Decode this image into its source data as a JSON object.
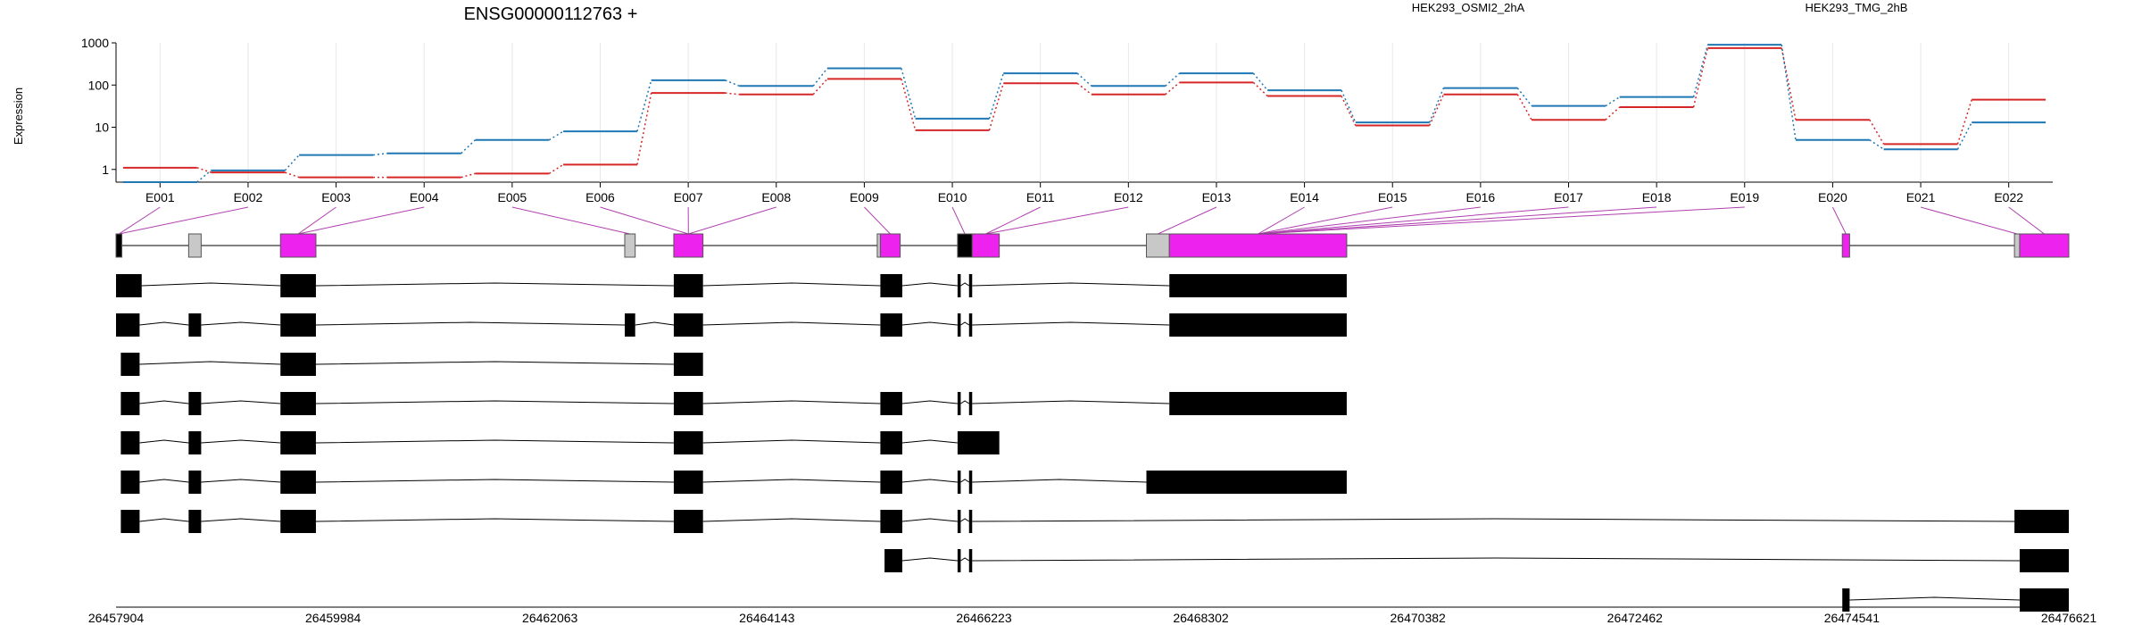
{
  "chart_data": {
    "type": "line",
    "title": "ENSG00000112763 +",
    "ylabel": "Expression",
    "y_scale": "log",
    "ylim": [
      0.5,
      1000
    ],
    "y_ticks": [
      "1000",
      "100",
      "10",
      "1"
    ],
    "grid": true,
    "legend_position": "top-right",
    "colors": {
      "OSMI2": "#d62728",
      "TMG": "#1f77b4",
      "exon_highlight": "#ee22ee",
      "exon_other": "#c8c8c8",
      "transcript": "#000000"
    },
    "categories": [
      "E001",
      "E002",
      "E003",
      "E004",
      "E005",
      "E006",
      "E007",
      "E008",
      "E009",
      "E010",
      "E011",
      "E012",
      "E013",
      "E014",
      "E015",
      "E016",
      "E017",
      "E018",
      "E019",
      "E020",
      "E021",
      "E022"
    ],
    "series": [
      {
        "name": "HEK293_OSMI2_2hA",
        "color": "#d62728",
        "values": [
          1.1,
          0.85,
          0.65,
          0.65,
          0.8,
          1.3,
          65,
          60,
          140,
          8.5,
          110,
          60,
          115,
          55,
          11,
          60,
          15,
          30,
          750,
          15,
          4,
          45
        ]
      },
      {
        "name": "HEK293_TMG_2hB",
        "color": "#1f77b4",
        "values": [
          0.5,
          0.95,
          2.2,
          2.4,
          5,
          8,
          130,
          95,
          250,
          16,
          190,
          95,
          190,
          75,
          13,
          85,
          32,
          52,
          900,
          5,
          3,
          13
        ]
      }
    ],
    "genomic_ticks": [
      "26457904",
      "26459984",
      "26462063",
      "26464143",
      "26466223",
      "26468302",
      "26470382",
      "26472462",
      "26474541",
      "26476621"
    ],
    "genomic_range": [
      26457904,
      26476621
    ],
    "exons": [
      {
        "start": 26457904,
        "end": 26457960,
        "type": "mixed"
      },
      {
        "start": 26458600,
        "end": 26458720,
        "type": "other"
      },
      {
        "start": 26459480,
        "end": 26459820,
        "type": "highlight"
      },
      {
        "start": 26462780,
        "end": 26462880,
        "type": "other"
      },
      {
        "start": 26463250,
        "end": 26463530,
        "type": "highlight"
      },
      {
        "start": 26465200,
        "end": 26465230,
        "type": "other"
      },
      {
        "start": 26465230,
        "end": 26465420,
        "type": "highlight"
      },
      {
        "start": 26465970,
        "end": 26466110,
        "type": "mixed"
      },
      {
        "start": 26466110,
        "end": 26466370,
        "type": "highlight"
      },
      {
        "start": 26467780,
        "end": 26468000,
        "type": "other"
      },
      {
        "start": 26468000,
        "end": 26469700,
        "type": "highlight"
      },
      {
        "start": 26474450,
        "end": 26474520,
        "type": "highlight"
      },
      {
        "start": 26476100,
        "end": 26476150,
        "type": "other"
      },
      {
        "start": 26476150,
        "end": 26476621,
        "type": "highlight"
      }
    ],
    "transcripts": [
      [
        [
          26457904,
          26458150
        ],
        [
          26459480,
          26459820
        ],
        [
          26463250,
          26463530
        ],
        [
          26465230,
          26465440
        ],
        [
          26465970,
          26466000
        ],
        [
          26466080,
          26466110
        ],
        [
          26468000,
          26469700
        ]
      ],
      [
        [
          26457904,
          26458130
        ],
        [
          26458600,
          26458720
        ],
        [
          26459480,
          26459820
        ],
        [
          26462780,
          26462880
        ],
        [
          26463250,
          26463530
        ],
        [
          26465230,
          26465440
        ],
        [
          26465970,
          26466000
        ],
        [
          26466080,
          26466110
        ],
        [
          26468000,
          26469700
        ]
      ],
      [
        [
          26457950,
          26458130
        ],
        [
          26459480,
          26459820
        ],
        [
          26463250,
          26463530
        ]
      ],
      [
        [
          26457950,
          26458130
        ],
        [
          26458600,
          26458720
        ],
        [
          26459480,
          26459820
        ],
        [
          26463250,
          26463530
        ],
        [
          26465230,
          26465440
        ],
        [
          26465970,
          26466000
        ],
        [
          26466080,
          26466110
        ],
        [
          26468000,
          26469700
        ]
      ],
      [
        [
          26457950,
          26458130
        ],
        [
          26458600,
          26458720
        ],
        [
          26459480,
          26459820
        ],
        [
          26463250,
          26463530
        ],
        [
          26465230,
          26465440
        ],
        [
          26465970,
          26466370
        ]
      ],
      [
        [
          26457950,
          26458130
        ],
        [
          26458600,
          26458720
        ],
        [
          26459480,
          26459820
        ],
        [
          26463250,
          26463530
        ],
        [
          26465230,
          26465440
        ],
        [
          26465970,
          26466000
        ],
        [
          26466080,
          26466110
        ],
        [
          26467780,
          26469700
        ]
      ],
      [
        [
          26457950,
          26458130
        ],
        [
          26458600,
          26458720
        ],
        [
          26459480,
          26459820
        ],
        [
          26463250,
          26463530
        ],
        [
          26465230,
          26465440
        ],
        [
          26465970,
          26466000
        ],
        [
          26466080,
          26466110
        ],
        [
          26476100,
          26476621
        ]
      ],
      [
        [
          26465270,
          26465440
        ],
        [
          26465970,
          26466000
        ],
        [
          26466080,
          26466110
        ],
        [
          26476150,
          26476621
        ]
      ],
      [
        [
          26474450,
          26474520
        ],
        [
          26476150,
          26476621
        ]
      ]
    ]
  }
}
